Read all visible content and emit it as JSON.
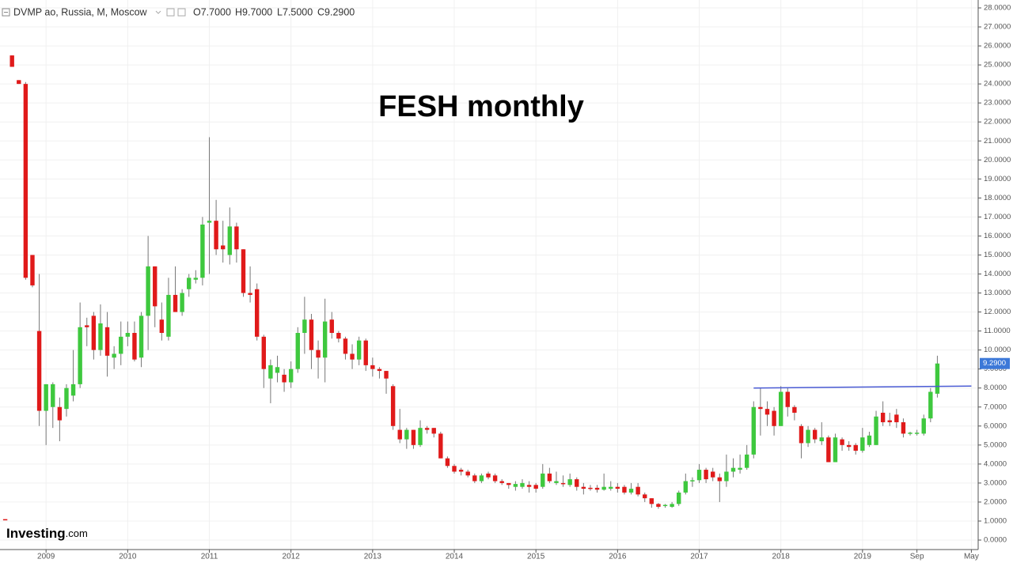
{
  "header": {
    "symbol": "DVMP ao, Russia, M, Moscow",
    "ohlc": [
      "O7.7000",
      "H9.7000",
      "L7.5000",
      "C9.2900"
    ]
  },
  "logo": {
    "name": "Investing",
    "suffix": ".com"
  },
  "chart_data": {
    "type": "candlestick",
    "title": "FESH monthly",
    "up_color": "#3ec83e",
    "down_color": "#e01a1a",
    "grid": true,
    "xlim": [
      "2008-06",
      "2020-06"
    ],
    "xticks": [
      {
        "value": "2009-01",
        "label": "2009"
      },
      {
        "value": "2010-01",
        "label": "2010"
      },
      {
        "value": "2011-01",
        "label": "2011"
      },
      {
        "value": "2012-01",
        "label": "2012"
      },
      {
        "value": "2013-01",
        "label": "2013"
      },
      {
        "value": "2014-01",
        "label": "2014"
      },
      {
        "value": "2015-01",
        "label": "2015"
      },
      {
        "value": "2016-01",
        "label": "2016"
      },
      {
        "value": "2017-01",
        "label": "2017"
      },
      {
        "value": "2018-01",
        "label": "2018"
      },
      {
        "value": "2019-01",
        "label": "2019"
      },
      {
        "value": "2019-09",
        "label": "Sep"
      },
      {
        "value": "2020-05",
        "label": "May"
      }
    ],
    "ylim": [
      0,
      28
    ],
    "yticks": [
      {
        "value": 0,
        "label": "0.0000"
      },
      {
        "value": 1,
        "label": "1.0000"
      },
      {
        "value": 2,
        "label": "2.0000"
      },
      {
        "value": 3,
        "label": "3.0000"
      },
      {
        "value": 4,
        "label": "4.0000"
      },
      {
        "value": 5,
        "label": "5.0000"
      },
      {
        "value": 6,
        "label": "6.0000"
      },
      {
        "value": 7,
        "label": "7.0000"
      },
      {
        "value": 8,
        "label": "8.0000"
      },
      {
        "value": 9,
        "label": "9.0000"
      },
      {
        "value": 10,
        "label": "10.0000"
      },
      {
        "value": 11,
        "label": "11.0000"
      },
      {
        "value": 12,
        "label": "12.0000"
      },
      {
        "value": 13,
        "label": "13.0000"
      },
      {
        "value": 14,
        "label": "14.0000"
      },
      {
        "value": 15,
        "label": "15.0000"
      },
      {
        "value": 16,
        "label": "16.0000"
      },
      {
        "value": 17,
        "label": "17.0000"
      },
      {
        "value": 18,
        "label": "18.0000"
      },
      {
        "value": 19,
        "label": "19.0000"
      },
      {
        "value": 20,
        "label": "20.0000"
      },
      {
        "value": 21,
        "label": "21.0000"
      },
      {
        "value": 22,
        "label": "22.0000"
      },
      {
        "value": 23,
        "label": "23.0000"
      },
      {
        "value": 24,
        "label": "24.0000"
      },
      {
        "value": 25,
        "label": "25.0000"
      },
      {
        "value": 26,
        "label": "26.0000"
      },
      {
        "value": 27,
        "label": "27.0000"
      },
      {
        "value": 28,
        "label": "28.0000"
      }
    ],
    "x": [
      "2008-07",
      "2008-08",
      "2008-09",
      "2008-10",
      "2008-11",
      "2008-12",
      "2009-01",
      "2009-02",
      "2009-03",
      "2009-04",
      "2009-05",
      "2009-06",
      "2009-07",
      "2009-08",
      "2009-09",
      "2009-10",
      "2009-11",
      "2009-12",
      "2010-01",
      "2010-02",
      "2010-03",
      "2010-04",
      "2010-05",
      "2010-06",
      "2010-07",
      "2010-08",
      "2010-09",
      "2010-10",
      "2010-11",
      "2010-12",
      "2011-01",
      "2011-02",
      "2011-03",
      "2011-04",
      "2011-05",
      "2011-06",
      "2011-07",
      "2011-08",
      "2011-09",
      "2011-10",
      "2011-11",
      "2011-12",
      "2012-01",
      "2012-02",
      "2012-03",
      "2012-04",
      "2012-05",
      "2012-06",
      "2012-07",
      "2012-08",
      "2012-09",
      "2012-10",
      "2012-11",
      "2012-12",
      "2013-01",
      "2013-02",
      "2013-03",
      "2013-04",
      "2013-05",
      "2013-06",
      "2013-07",
      "2013-08",
      "2013-09",
      "2013-10",
      "2013-11",
      "2013-12",
      "2014-01",
      "2014-02",
      "2014-03",
      "2014-04",
      "2014-05",
      "2014-06",
      "2014-07",
      "2014-08",
      "2014-09",
      "2014-10",
      "2014-11",
      "2014-12",
      "2015-01",
      "2015-02",
      "2015-03",
      "2015-04",
      "2015-05",
      "2015-06",
      "2015-07",
      "2015-08",
      "2015-09",
      "2015-10",
      "2015-11",
      "2015-12",
      "2016-01",
      "2016-02",
      "2016-03",
      "2016-04",
      "2016-05",
      "2016-06",
      "2016-07",
      "2016-08",
      "2016-09",
      "2016-10",
      "2016-11",
      "2016-12",
      "2017-01",
      "2017-02",
      "2017-03",
      "2017-04",
      "2017-05",
      "2017-06",
      "2017-07",
      "2017-08",
      "2017-09",
      "2017-10",
      "2017-11",
      "2017-12",
      "2018-01",
      "2018-02",
      "2018-03",
      "2018-04",
      "2018-05",
      "2018-06",
      "2018-07",
      "2018-08",
      "2018-09",
      "2018-10",
      "2018-11",
      "2018-12",
      "2019-01",
      "2019-02",
      "2019-03",
      "2019-04",
      "2019-05",
      "2019-06",
      "2019-07",
      "2019-08",
      "2019-09",
      "2019-10",
      "2019-11",
      "2019-12"
    ],
    "open": [
      1.1,
      25.5,
      24.2,
      24.0,
      15.0,
      11.0,
      6.8,
      7.0,
      7.0,
      6.9,
      7.6,
      8.2,
      11.3,
      11.8,
      10.0,
      11.2,
      9.6,
      9.8,
      10.7,
      10.9,
      9.6,
      11.8,
      14.4,
      11.6,
      10.7,
      12.9,
      12.0,
      13.2,
      13.7,
      13.8,
      16.7,
      16.8,
      15.5,
      15.0,
      16.5,
      15.3,
      13.0,
      13.2,
      10.7,
      8.5,
      8.8,
      8.7,
      8.3,
      9.0,
      10.9,
      11.6,
      10.0,
      9.6,
      11.6,
      10.9,
      10.6,
      9.8,
      9.5,
      10.5,
      9.2,
      9.0,
      8.9,
      8.1,
      5.8,
      5.3,
      5.8,
      5.0,
      5.9,
      5.9,
      5.6,
      4.3,
      3.9,
      3.7,
      3.6,
      3.4,
      3.1,
      3.5,
      3.4,
      3.1,
      3.0,
      2.8,
      2.8,
      2.9,
      2.9,
      2.8,
      3.5,
      3.0,
      3.0,
      2.9,
      3.2,
      2.8,
      2.75,
      2.75,
      2.65,
      2.7,
      2.8,
      2.8,
      2.5,
      2.8,
      2.4,
      2.2,
      1.9,
      1.8,
      1.75,
      1.9,
      2.5,
      3.1,
      3.15,
      3.7,
      3.6,
      3.3,
      3.1,
      3.6,
      3.7,
      3.8,
      4.5,
      7.0,
      6.9,
      6.8,
      6.0,
      7.8,
      7.0,
      6.0,
      5.1,
      5.8,
      5.2,
      5.4,
      4.1,
      5.3,
      5.0,
      5.0,
      4.7,
      5.0,
      5.0,
      6.7,
      6.3,
      6.6,
      6.2,
      5.6,
      5.6,
      5.6,
      6.4,
      7.7
    ],
    "high": [
      1.1,
      25.5,
      24.2,
      24.1,
      15.0,
      14.0,
      8.2,
      8.3,
      7.5,
      8.2,
      10.0,
      12.5,
      11.7,
      12.0,
      12.4,
      12.0,
      10.2,
      11.5,
      11.5,
      11.5,
      12.0,
      16.0,
      14.4,
      12.5,
      13.8,
      14.4,
      13.2,
      14.0,
      14.2,
      17.0,
      21.2,
      17.9,
      16.8,
      17.5,
      16.7,
      15.3,
      14.4,
      13.5,
      10.8,
      9.5,
      9.7,
      9.0,
      9.4,
      11.2,
      12.8,
      11.9,
      10.5,
      12.7,
      12.0,
      11.0,
      10.7,
      10.3,
      10.7,
      10.6,
      9.6,
      9.1,
      8.9,
      8.2,
      6.9,
      5.9,
      5.8,
      6.3,
      6.0,
      5.9,
      5.7,
      4.4,
      4.0,
      3.8,
      3.7,
      3.5,
      3.5,
      3.6,
      3.5,
      3.2,
      3.0,
      3.1,
      3.2,
      3.1,
      3.0,
      4.0,
      3.8,
      3.6,
      3.4,
      3.5,
      3.3,
      3.0,
      2.9,
      2.9,
      3.5,
      3.1,
      3.0,
      2.9,
      3.0,
      3.0,
      2.5,
      2.2,
      1.95,
      1.9,
      2.0,
      2.6,
      3.5,
      3.3,
      4.0,
      3.8,
      3.8,
      3.5,
      4.5,
      4.3,
      4.5,
      5.0,
      7.3,
      8.0,
      7.3,
      7.0,
      8.1,
      8.0,
      7.1,
      6.1,
      6.0,
      5.9,
      6.2,
      5.5,
      5.6,
      5.4,
      5.2,
      5.1,
      5.9,
      5.7,
      6.8,
      7.3,
      6.7,
      6.9,
      6.4,
      5.7,
      5.8,
      6.6,
      8.0,
      9.7
    ],
    "low": [
      1.05,
      24.9,
      24.0,
      13.7,
      13.3,
      6.0,
      5.0,
      5.9,
      5.2,
      6.5,
      7.3,
      8.0,
      10.2,
      9.5,
      9.7,
      8.6,
      9.0,
      9.2,
      10.2,
      9.4,
      9.1,
      10.0,
      11.2,
      10.5,
      10.5,
      12.0,
      11.8,
      12.8,
      13.5,
      13.4,
      14.0,
      15.0,
      14.6,
      14.5,
      14.6,
      12.8,
      12.5,
      10.5,
      8.0,
      7.2,
      8.3,
      7.8,
      8.0,
      8.8,
      9.8,
      9.0,
      8.5,
      8.3,
      10.6,
      10.4,
      9.5,
      9.0,
      9.2,
      8.9,
      8.6,
      8.5,
      7.7,
      5.8,
      5.1,
      4.8,
      4.8,
      4.9,
      5.6,
      5.4,
      4.3,
      3.8,
      3.5,
      3.4,
      3.3,
      3.0,
      3.0,
      3.2,
      3.0,
      2.9,
      2.7,
      2.6,
      2.7,
      2.5,
      2.5,
      2.7,
      3.0,
      2.9,
      2.8,
      2.8,
      2.6,
      2.4,
      2.6,
      2.5,
      2.6,
      2.6,
      2.5,
      2.4,
      2.4,
      2.3,
      2.0,
      1.7,
      1.65,
      1.7,
      1.7,
      1.8,
      2.4,
      2.8,
      3.0,
      3.0,
      3.1,
      2.0,
      2.8,
      3.3,
      3.5,
      3.7,
      4.3,
      5.5,
      6.0,
      5.5,
      6.0,
      6.5,
      6.3,
      4.3,
      4.9,
      5.1,
      5.0,
      4.1,
      4.1,
      4.7,
      4.7,
      4.5,
      4.6,
      4.9,
      5.0,
      6.0,
      6.0,
      5.9,
      5.4,
      5.5,
      5.5,
      5.5,
      6.2,
      7.5
    ],
    "close": [
      1.05,
      24.9,
      24.0,
      13.8,
      13.4,
      6.8,
      8.2,
      8.2,
      6.3,
      8.0,
      8.2,
      11.2,
      11.2,
      10.0,
      11.4,
      9.7,
      9.8,
      10.7,
      10.9,
      9.5,
      11.8,
      14.4,
      12.3,
      10.9,
      12.9,
      12.0,
      13.0,
      13.8,
      13.8,
      16.6,
      16.8,
      15.3,
      15.3,
      16.5,
      15.3,
      13.0,
      12.9,
      10.7,
      9.0,
      9.2,
      9.1,
      8.3,
      9.0,
      10.9,
      11.6,
      10.0,
      9.6,
      11.5,
      10.9,
      10.6,
      9.8,
      9.5,
      10.5,
      9.2,
      9.0,
      8.9,
      8.5,
      6.0,
      5.3,
      5.8,
      5.0,
      5.9,
      5.8,
      5.6,
      4.3,
      3.9,
      3.6,
      3.6,
      3.4,
      3.1,
      3.4,
      3.3,
      3.1,
      3.0,
      2.9,
      2.95,
      3.0,
      2.8,
      2.7,
      3.5,
      3.1,
      3.1,
      2.95,
      3.2,
      2.8,
      2.7,
      2.7,
      2.65,
      2.8,
      2.8,
      2.7,
      2.5,
      2.7,
      2.4,
      2.2,
      1.9,
      1.75,
      1.85,
      1.9,
      2.5,
      3.1,
      3.15,
      3.7,
      3.2,
      3.3,
      3.1,
      3.6,
      3.8,
      3.8,
      4.5,
      7.0,
      6.9,
      6.6,
      6.0,
      7.8,
      7.0,
      6.7,
      5.1,
      5.8,
      5.3,
      5.4,
      4.1,
      5.4,
      5.0,
      4.9,
      4.7,
      5.4,
      5.5,
      6.5,
      6.2,
      6.2,
      6.2,
      5.6,
      5.65,
      5.65,
      6.4,
      7.8,
      9.29
    ],
    "last_price_label": "9.2900",
    "last_price_color": "#3c78d8",
    "trendline": {
      "x": [
        "2017-09",
        "2020-05"
      ],
      "y": [
        8.0,
        8.1
      ],
      "color": "#4a5bd4"
    }
  }
}
